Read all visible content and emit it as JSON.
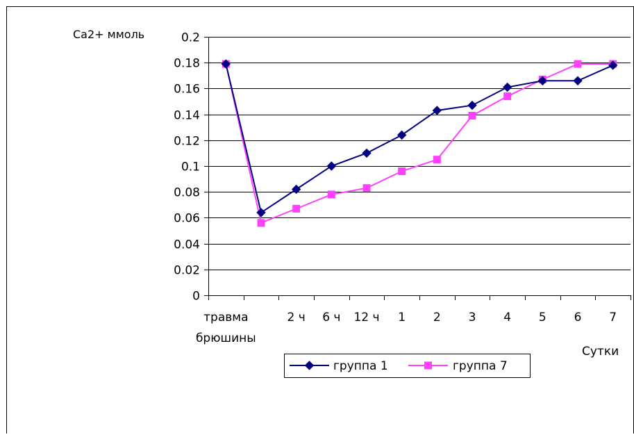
{
  "chart_data": {
    "type": "line",
    "ylabel": "Ca2+ ммоль",
    "xlabel": "Сутки",
    "ylim": [
      0,
      0.2
    ],
    "yticks": [
      "0",
      "0.02",
      "0.04",
      "0.06",
      "0.08",
      "0.1",
      "0.12",
      "0.14",
      "0.16",
      "0.18",
      "0.2"
    ],
    "categories": [
      "травма брюшины",
      "",
      "2 ч",
      "6 ч",
      "12 ч",
      "1",
      "2",
      "3",
      "4",
      "5",
      "6",
      "7"
    ],
    "grid": true,
    "legend_position": "bottom",
    "series": [
      {
        "name": "группа 1",
        "color": "#000080",
        "marker": "diamond",
        "values": [
          0.179,
          0.064,
          0.082,
          0.1,
          0.11,
          0.124,
          0.143,
          0.147,
          0.161,
          0.166,
          0.166,
          0.178
        ]
      },
      {
        "name": "группа 7",
        "color": "#FF40FF",
        "marker": "square",
        "values": [
          0.179,
          0.056,
          0.067,
          0.078,
          0.083,
          0.096,
          0.105,
          0.139,
          0.154,
          0.167,
          0.179,
          0.179
        ]
      }
    ]
  }
}
